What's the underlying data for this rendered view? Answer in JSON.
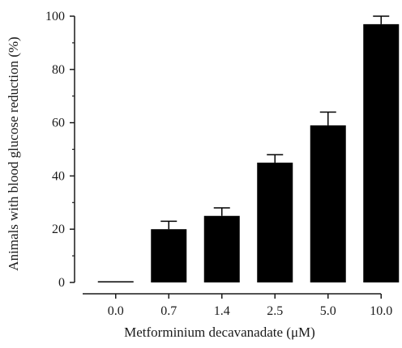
{
  "chart_data": {
    "type": "bar",
    "title": "",
    "xlabel": "Metforminium decavanadate (μM)",
    "ylabel": "Animals with blood glucose reduction (%)",
    "categories": [
      "0.0",
      "0.7",
      "1.4",
      "2.5",
      "5.0",
      "10.0"
    ],
    "values": [
      0,
      20,
      25,
      45,
      59,
      97
    ],
    "errors": [
      0,
      3,
      3,
      3,
      5,
      3
    ],
    "ylim": [
      0,
      100
    ],
    "yticks": [
      "0",
      "20",
      "40",
      "60",
      "80",
      "100"
    ],
    "ytick_values": [
      0,
      20,
      40,
      60,
      80,
      100
    ],
    "grid": false,
    "bar_color": "#000000",
    "axis_color": "#1a1a1a"
  }
}
